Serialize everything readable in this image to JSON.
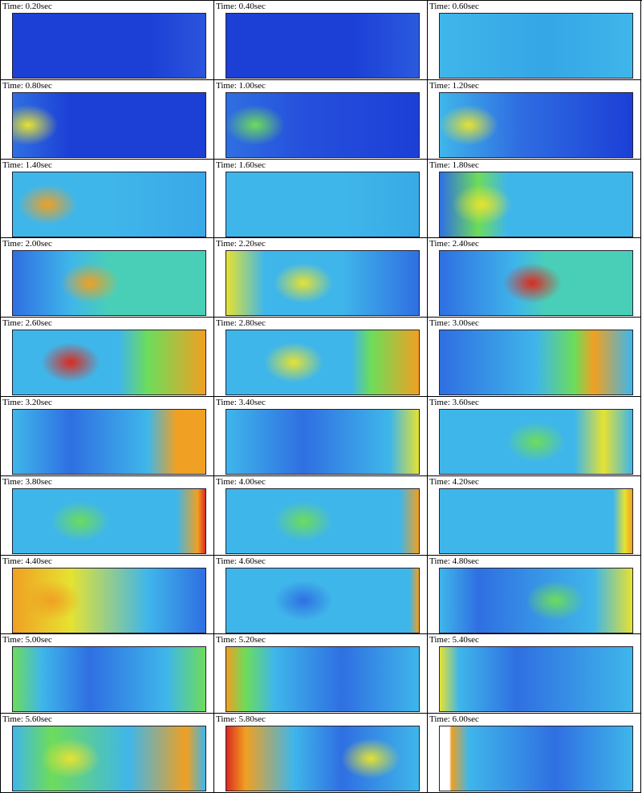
{
  "panels": [
    "Time: 0.20sec",
    "Time: 0.40sec",
    "Time: 0.60sec",
    "Time: 0.80sec",
    "Time: 1.00sec",
    "Time: 1.20sec",
    "Time: 1.40sec",
    "Time: 1.60sec",
    "Time: 1.80sec",
    "Time: 2.00sec",
    "Time: 2.20sec",
    "Time: 2.40sec",
    "Time: 2.60sec",
    "Time: 2.80sec",
    "Time: 3.00sec",
    "Time: 3.20sec",
    "Time: 3.40sec",
    "Time: 3.60sec",
    "Time: 3.80sec",
    "Time: 4.00sec",
    "Time: 4.20sec",
    "Time: 4.40sec",
    "Time: 4.60sec",
    "Time: 4.80sec",
    "Time: 5.00sec",
    "Time: 5.20sec",
    "Time: 5.40sec",
    "Time: 5.60sec",
    "Time: 5.80sec",
    "Time: 6.00sec"
  ]
}
